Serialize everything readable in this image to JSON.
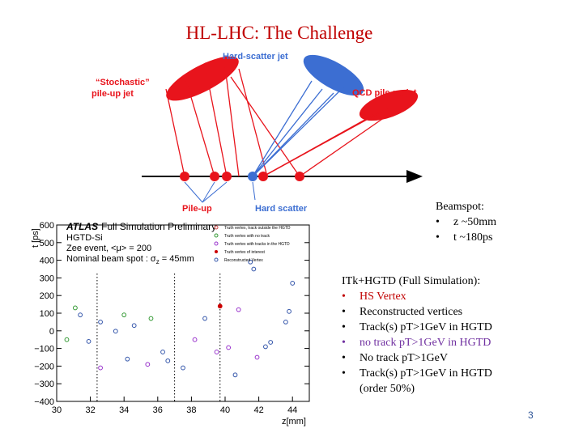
{
  "slide": {
    "title": "HL-LHC: The Challenge",
    "page_number": "3"
  },
  "diagram": {
    "hard_scatter_jet": "Hard-scatter jet",
    "stochastic_jet": "“Stochastic”",
    "stochastic_jet_2": "pile-up jet",
    "qcd_jet": "QCD pile-up jet",
    "pileup": "Pile-up",
    "hard_scatter": "Hard scatter",
    "colors": {
      "red": "#e8141c",
      "blue": "#3c6ed2",
      "black": "#000000"
    }
  },
  "beamspot": {
    "title": "Beamspot:",
    "items": [
      "z ~50mm",
      "t ~180ps"
    ]
  },
  "itk": {
    "title": "ITk+HGTD (Full Simulation):",
    "items": [
      {
        "text": "HS Vertex",
        "color": "#c00000"
      },
      {
        "text": "Reconstructed vertices",
        "color": "#000000"
      },
      {
        "text": "Track(s) pT>1GeV in HGTD",
        "color": "#000000"
      },
      {
        "text": "no track pT>1GeV in HGTD",
        "color": "#7030a0"
      },
      {
        "text": "No track pT>1GeV",
        "color": "#000000"
      },
      {
        "text": "Track(s) pT>1GeV in HGTD",
        "color": "#000000"
      }
    ],
    "extra": "(order 50%)"
  },
  "plot": {
    "atlas": "ATLAS",
    "atlas_rest": "Full Simulation Preliminary",
    "line2": "HGTD-Si",
    "line3": "Zee event, <μ> = 200",
    "line4": "Nominal beam spot : σ",
    "line4_sub": "z",
    "line4_end": " = 45mm",
    "ylabel": "t [ps]",
    "xlabel": "z[mm]",
    "legend": [
      "Truth vertex, track outside the HGTD",
      "Truth vertex with no track",
      "Truth vertex with tracks in the HGTD",
      "Truth vertex of interest",
      "Reconstructed Vertex"
    ]
  },
  "chart_data": {
    "type": "scatter",
    "xlabel": "z[mm]",
    "ylabel": "t [ps]",
    "xlim": [
      30,
      45
    ],
    "ylim": [
      -400,
      600
    ],
    "xticks": [
      "30",
      "32",
      "34",
      "36",
      "38",
      "40",
      "42",
      "44"
    ],
    "yticks": [
      "−400",
      "−300",
      "−200",
      "−100",
      "0",
      "100",
      "200",
      "300",
      "400",
      "500",
      "600"
    ],
    "dotted_lines_x": [
      32.4,
      37.0,
      39.7
    ],
    "series": [
      {
        "name": "Reconstructed Vertex",
        "points": [
          [
            31.4,
            90
          ],
          [
            31.9,
            -60
          ],
          [
            32.6,
            50
          ],
          [
            33.5,
            -2
          ],
          [
            34.2,
            -160
          ],
          [
            34.6,
            30
          ],
          [
            36.3,
            -120
          ],
          [
            36.6,
            -170
          ],
          [
            37.5,
            -210
          ],
          [
            38.8,
            70
          ],
          [
            40.6,
            -250
          ],
          [
            41.5,
            390
          ],
          [
            41.7,
            350
          ],
          [
            42.4,
            -90
          ],
          [
            42.7,
            -65
          ],
          [
            43.6,
            50
          ],
          [
            43.8,
            110
          ],
          [
            44.0,
            270
          ]
        ]
      },
      {
        "name": "Truth vertex with no track",
        "points": [
          [
            31.1,
            130
          ],
          [
            30.6,
            -50
          ],
          [
            34.0,
            90
          ],
          [
            35.6,
            70
          ]
        ]
      },
      {
        "name": "Truth vertex with tracks in the HGTD",
        "points": [
          [
            32.6,
            -210
          ],
          [
            35.4,
            -190
          ],
          [
            38.2,
            -50
          ],
          [
            39.5,
            -120
          ],
          [
            40.2,
            -95
          ],
          [
            40.8,
            120
          ],
          [
            41.9,
            -150
          ]
        ]
      },
      {
        "name": "Truth vertex of interest",
        "points": [
          [
            39.7,
            140
          ]
        ]
      }
    ]
  }
}
